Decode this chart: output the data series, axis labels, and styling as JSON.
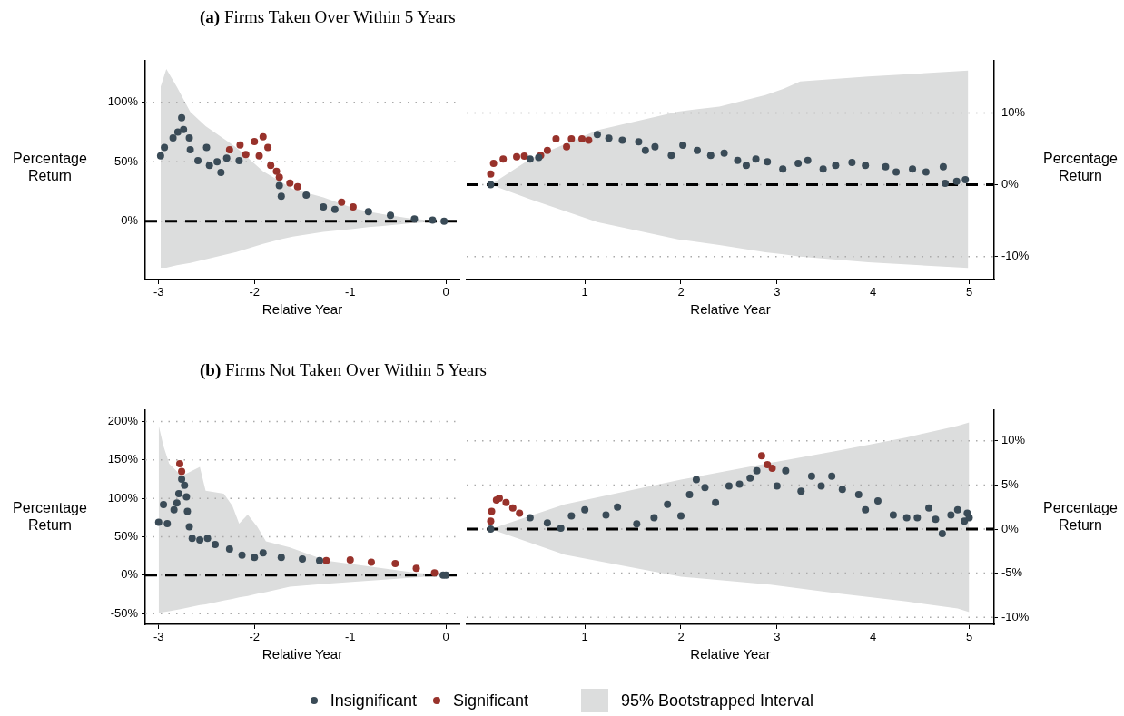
{
  "chart_data": [
    {
      "type": "scatter",
      "title": "(a) Firms Taken Over Within 5 Years",
      "xlabel": "Relative Year",
      "ylabel": "Percentage Return",
      "xlim": [
        -3.14,
        0.14
      ],
      "xticks": [
        -3,
        -2,
        -1,
        0
      ],
      "ylim": [
        -49,
        135
      ],
      "yticks": [
        {
          "value": 0,
          "label": "0%"
        },
        {
          "value": 50,
          "label": "50%"
        },
        {
          "value": 100,
          "label": "100%"
        }
      ],
      "grid": "y",
      "marker": "circle",
      "ref_lines": [
        {
          "axis": "y",
          "value": 0,
          "color": "#000000",
          "line_style": "dashed"
        }
      ],
      "series": [
        {
          "type": "area",
          "color": "#dcdddd",
          "x": [
            -2.98,
            -2.92,
            -2.81,
            -2.67,
            -2.51,
            -2.19,
            -1.91,
            -1.72,
            -1.6,
            -1.28,
            -0.97,
            -0.81,
            -0.66,
            -0.34,
            -0.02
          ],
          "values": [
            null,
            null,
            null,
            null,
            null,
            null,
            null,
            null,
            null,
            null,
            null,
            null,
            null,
            null,
            null
          ],
          "lower": [
            -39,
            -39,
            -37,
            -35,
            -32,
            -26,
            -19,
            -15,
            -13,
            -9,
            -6.5,
            -5,
            -4,
            -1.5,
            0
          ],
          "upper": [
            113,
            128,
            113,
            92,
            80,
            62,
            42,
            33,
            27,
            20,
            11,
            8,
            6,
            2,
            0
          ]
        },
        {
          "color": "#3a4b57",
          "x": [
            -2.98,
            -2.94,
            -2.85,
            -2.8,
            -2.76,
            -2.74,
            -2.68,
            -2.67,
            -2.59,
            -2.5,
            -2.47,
            -2.39,
            -2.35,
            -2.29,
            -2.16,
            -1.74,
            -1.72,
            -1.46,
            -1.28,
            -1.16,
            -0.81,
            -0.58,
            -0.33,
            -0.14,
            -0.02
          ],
          "values": [
            55,
            62,
            70,
            75,
            87,
            77,
            70,
            60,
            51,
            62,
            47,
            50,
            41,
            53,
            51,
            30,
            21,
            22,
            12,
            10,
            8,
            5,
            2,
            1,
            0
          ]
        },
        {
          "color": "#98322b",
          "x": [
            -2.26,
            -2.15,
            -2.09,
            -2.0,
            -1.95,
            -1.91,
            -1.86,
            -1.83,
            -1.77,
            -1.74,
            -1.63,
            -1.55,
            -1.09,
            -0.97
          ],
          "values": [
            60,
            64,
            56,
            67,
            55,
            71,
            62,
            47,
            42,
            37,
            32,
            29,
            16,
            12
          ]
        }
      ]
    },
    {
      "type": "scatter",
      "xlabel": "Relative Year",
      "y2label": "Percentage Return",
      "xlim": [
        -0.23,
        5.26
      ],
      "xticks": [
        1,
        2,
        3,
        4,
        5
      ],
      "y2lim": [
        -13.2,
        17.3
      ],
      "y2ticks": [
        {
          "value": -10,
          "label": "-10%"
        },
        {
          "value": 0,
          "label": "0%"
        },
        {
          "value": 10,
          "label": "10%"
        }
      ],
      "grid": "y",
      "marker": "circle",
      "ref_lines": [
        {
          "axis": "y2",
          "value": 0,
          "color": "#000000",
          "line_style": "dashed"
        }
      ],
      "series": [
        {
          "type": "area",
          "axis": "y2",
          "color": "#dcdddd",
          "x": [
            0.02,
            0.43,
            1.13,
            1.97,
            2.4,
            2.88,
            3.07,
            3.24,
            3.95,
            4.99
          ],
          "values": [
            null,
            null,
            null,
            null,
            null,
            null,
            null,
            null,
            null,
            null
          ],
          "lower": [
            0,
            -2.0,
            -5.2,
            -7.6,
            -8.4,
            -9.4,
            -9.7,
            -10.0,
            -10.8,
            -11.6
          ],
          "upper": [
            0,
            3.6,
            7.6,
            10.2,
            10.9,
            12.5,
            13.4,
            14.4,
            15.1,
            15.9
          ]
        },
        {
          "axis": "y2",
          "color": "#3a4b57",
          "x": [
            0.02,
            0.43,
            0.52,
            1.13,
            1.25,
            1.39,
            1.56,
            1.63,
            1.73,
            1.9,
            2.02,
            2.17,
            2.31,
            2.45,
            2.59,
            2.68,
            2.78,
            2.9,
            3.06,
            3.22,
            3.32,
            3.48,
            3.61,
            3.78,
            3.92,
            4.13,
            4.24,
            4.41,
            4.55,
            4.73,
            4.75,
            4.87,
            4.96
          ],
          "values": [
            0,
            3.6,
            3.8,
            7.0,
            6.5,
            6.2,
            6.0,
            4.8,
            5.3,
            4.1,
            5.5,
            4.8,
            4.1,
            4.4,
            3.4,
            2.7,
            3.6,
            3.2,
            2.2,
            3.0,
            3.4,
            2.2,
            2.7,
            3.1,
            2.7,
            2.5,
            1.8,
            2.2,
            1.8,
            2.5,
            0.2,
            0.5,
            0.7
          ]
        },
        {
          "axis": "y2",
          "color": "#98322b",
          "x": [
            0.02,
            0.05,
            0.15,
            0.29,
            0.37,
            0.54,
            0.61,
            0.7,
            0.81,
            0.86,
            0.97,
            1.04
          ],
          "values": [
            1.5,
            3.0,
            3.6,
            3.9,
            4.0,
            4.1,
            4.8,
            6.4,
            5.3,
            6.4,
            6.4,
            6.2
          ]
        }
      ]
    },
    {
      "type": "scatter",
      "title": "(b) Firms Not Taken Over Within 5 Years",
      "xlabel": "Relative Year",
      "ylabel": "Percentage Return",
      "xlim": [
        -3.14,
        0.14
      ],
      "xticks": [
        -3,
        -2,
        -1,
        0
      ],
      "ylim": [
        -64,
        215
      ],
      "yticks": [
        {
          "value": -50,
          "label": "-50%"
        },
        {
          "value": 0,
          "label": "0%"
        },
        {
          "value": 50,
          "label": "50%"
        },
        {
          "value": 100,
          "label": "100%"
        },
        {
          "value": 150,
          "label": "150%"
        },
        {
          "value": 200,
          "label": "200%"
        }
      ],
      "grid": "y",
      "marker": "circle",
      "ref_lines": [
        {
          "axis": "y",
          "value": 0,
          "color": "#000000",
          "line_style": "dashed"
        }
      ],
      "series": [
        {
          "type": "area",
          "color": "#dcdddd",
          "x": [
            -3.0,
            -2.95,
            -2.89,
            -2.76,
            -2.57,
            -2.51,
            -2.32,
            -2.23,
            -2.16,
            -2.07,
            -1.97,
            -1.88,
            -1.63,
            -1.25,
            -0.78,
            -0.31,
            0
          ],
          "values": [
            null,
            null,
            null,
            null,
            null,
            null,
            null,
            null,
            null,
            null,
            null,
            null,
            null,
            null,
            null,
            null,
            null
          ],
          "lower": [
            -49,
            -48,
            -47,
            -44,
            -39,
            -38,
            -33,
            -31,
            -29,
            -27,
            -24,
            -22,
            -15,
            -11,
            -7,
            -3,
            0
          ],
          "upper": [
            195,
            168,
            145,
            129,
            141,
            110,
            106,
            90,
            67,
            79,
            63,
            44,
            36,
            19,
            11,
            3,
            0
          ]
        },
        {
          "color": "#3a4b57",
          "x": [
            -3.0,
            -2.95,
            -2.91,
            -2.84,
            -2.81,
            -2.79,
            -2.76,
            -2.73,
            -2.71,
            -2.7,
            -2.68,
            -2.65,
            -2.57,
            -2.49,
            -2.41,
            -2.26,
            -2.13,
            -2.0,
            -1.91,
            -1.72,
            -1.5,
            -1.32,
            -0.03,
            0
          ],
          "values": [
            69,
            92,
            67,
            85,
            94,
            106,
            125,
            117,
            102,
            83,
            63,
            48,
            46,
            48,
            40,
            34,
            26,
            23,
            29,
            23,
            21,
            19,
            0,
            0
          ]
        },
        {
          "color": "#98322b",
          "x": [
            -2.78,
            -2.76,
            -1.25,
            -1.0,
            -0.78,
            -0.53,
            -0.31,
            -0.12
          ],
          "values": [
            145,
            135,
            19,
            20,
            17,
            15,
            9,
            3
          ]
        }
      ]
    },
    {
      "type": "scatter",
      "xlabel": "Relative Year",
      "y2label": "Percentage Return",
      "xlim": [
        -0.23,
        5.26
      ],
      "xticks": [
        1,
        2,
        3,
        4,
        5
      ],
      "y2lim": [
        -10.8,
        13.5
      ],
      "y2ticks": [
        {
          "value": -10,
          "label": "-10%"
        },
        {
          "value": -5,
          "label": "-5%"
        },
        {
          "value": 0,
          "label": "0%"
        },
        {
          "value": 5,
          "label": "5%"
        },
        {
          "value": 10,
          "label": "10%"
        }
      ],
      "grid": "y",
      "marker": "circle",
      "legend": "bottom",
      "ref_lines": [
        {
          "axis": "y2",
          "value": 0,
          "color": "#000000",
          "line_style": "dashed"
        }
      ],
      "series": [
        {
          "type": "area",
          "axis": "y2",
          "name": "95% Bootstrapped Interval",
          "color": "#dcdddd",
          "x": [
            0.02,
            0.79,
            2.0,
            2.93,
            3.64,
            4.35,
            4.88,
            5.0
          ],
          "values": [
            null,
            null,
            null,
            null,
            null,
            null,
            null,
            null
          ],
          "lower": [
            0,
            -2.9,
            -5.4,
            -6.3,
            -7.3,
            -8.2,
            -9.0,
            -9.4
          ],
          "upper": [
            0,
            2.8,
            5.6,
            7.5,
            8.9,
            10.4,
            11.7,
            12.1
          ]
        },
        {
          "axis": "y2",
          "name": "Insignificant",
          "color": "#3a4b57",
          "x": [
            0.02,
            0.43,
            0.61,
            0.75,
            0.86,
            1.0,
            1.22,
            1.34,
            1.54,
            1.72,
            1.86,
            2.0,
            2.09,
            2.16,
            2.25,
            2.36,
            2.5,
            2.61,
            2.72,
            2.79,
            3.0,
            3.09,
            3.25,
            3.36,
            3.46,
            3.57,
            3.68,
            3.85,
            3.92,
            4.05,
            4.21,
            4.35,
            4.46,
            4.58,
            4.65,
            4.72,
            4.81,
            4.88,
            4.95,
            4.98,
            5.0
          ],
          "values": [
            0,
            1.3,
            0.7,
            0.1,
            1.5,
            2.2,
            1.6,
            2.5,
            0.6,
            1.3,
            2.8,
            1.5,
            3.9,
            5.6,
            4.7,
            3.0,
            4.9,
            5.1,
            5.8,
            6.6,
            4.9,
            6.6,
            4.3,
            6.0,
            4.9,
            6.0,
            4.5,
            3.9,
            2.2,
            3.2,
            1.6,
            1.3,
            1.3,
            2.4,
            1.1,
            -0.5,
            1.6,
            2.2,
            0.9,
            1.8,
            1.3
          ]
        },
        {
          "axis": "y2",
          "name": "Significant",
          "color": "#98322b",
          "x": [
            0.02,
            0.03,
            0.08,
            0.11,
            0.18,
            0.25,
            0.32,
            2.84,
            2.9,
            2.95
          ],
          "values": [
            0.9,
            2.0,
            3.3,
            3.5,
            3.0,
            2.4,
            1.8,
            8.3,
            7.3,
            6.9
          ]
        }
      ]
    }
  ]
}
